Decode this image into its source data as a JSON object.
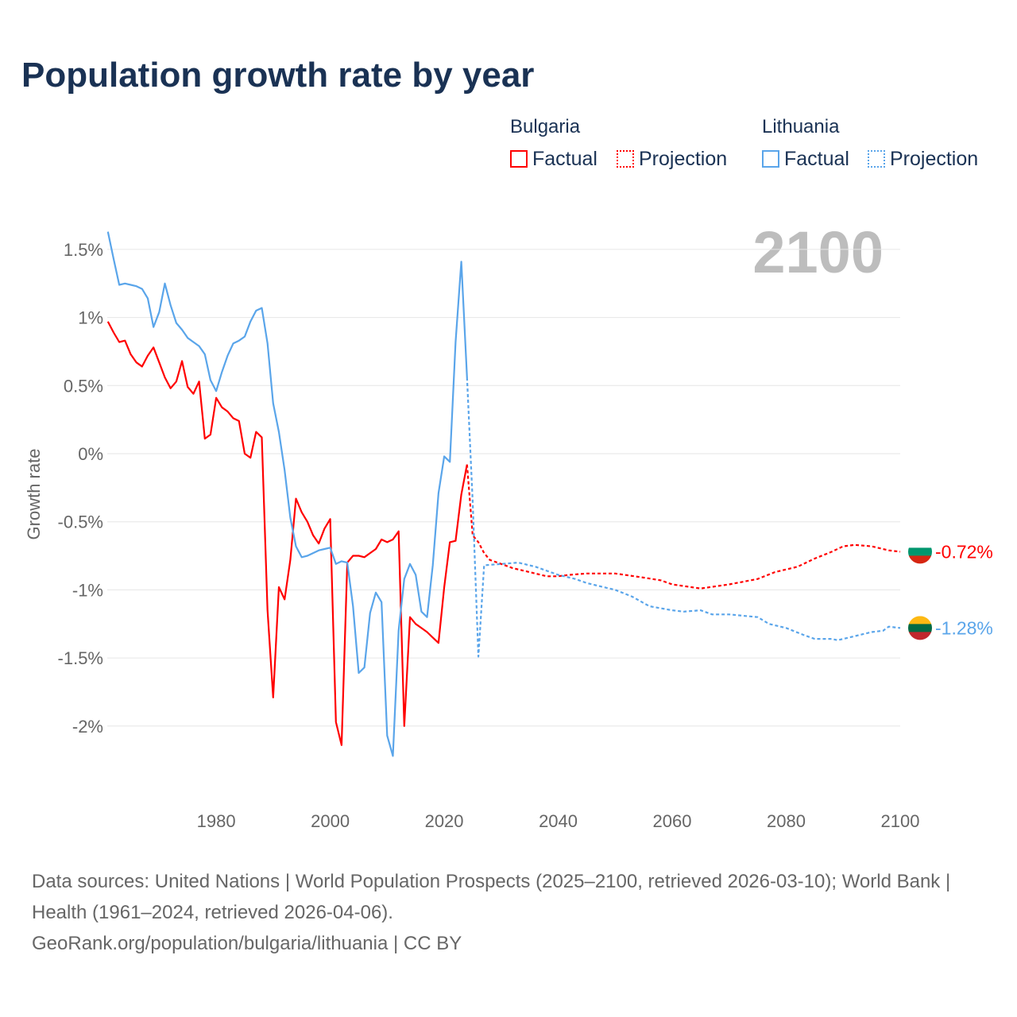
{
  "title": "Population growth rate by year",
  "legend": {
    "groups": [
      {
        "name": "Bulgaria",
        "factual": "Factual",
        "projection": "Projection",
        "color": "#ff0000"
      },
      {
        "name": "Lithuania",
        "factual": "Factual",
        "projection": "Projection",
        "color": "#5aa5ea"
      }
    ]
  },
  "year_label": "2100",
  "sources": {
    "line1": "Data sources: United Nations | World Population Prospects (2025–2100, retrieved 2026-03-10); World Bank | Health (1961–2024, retrieved 2026-04-06).",
    "line2": "GeoRank.org/population/bulgaria/lithuania | CC BY"
  },
  "chart_data": {
    "type": "line",
    "title": "Population growth rate by year",
    "xlabel": "",
    "ylabel": "Growth rate",
    "xlim": [
      1961,
      2100
    ],
    "ylim": [
      -2.3,
      1.65
    ],
    "xticks": [
      1980,
      2000,
      2020,
      2040,
      2060,
      2080,
      2100
    ],
    "yticks": [
      1.5,
      1,
      0.5,
      0,
      -0.5,
      -1,
      -1.5,
      -2
    ],
    "ytick_labels": [
      "1.5%",
      "1%",
      "0.5%",
      "0%",
      "-0.5%",
      "-1%",
      "-1.5%",
      "-2%"
    ],
    "grid": true,
    "legend_position": "top-right",
    "series": [
      {
        "name": "Bulgaria Factual",
        "color": "#ff0000",
        "dash": false,
        "x": [
          1961,
          1962,
          1963,
          1964,
          1965,
          1966,
          1967,
          1968,
          1969,
          1970,
          1971,
          1972,
          1973,
          1974,
          1975,
          1976,
          1977,
          1978,
          1979,
          1980,
          1981,
          1982,
          1983,
          1984,
          1985,
          1986,
          1987,
          1988,
          1989,
          1990,
          1991,
          1992,
          1993,
          1994,
          1995,
          1996,
          1997,
          1998,
          1999,
          2000,
          2001,
          2002,
          2003,
          2004,
          2005,
          2006,
          2007,
          2008,
          2009,
          2010,
          2011,
          2012,
          2013,
          2014,
          2015,
          2016,
          2017,
          2018,
          2019,
          2020,
          2021,
          2022,
          2023,
          2024
        ],
        "y": [
          0.97,
          0.89,
          0.82,
          0.83,
          0.73,
          0.67,
          0.64,
          0.72,
          0.78,
          0.67,
          0.56,
          0.48,
          0.53,
          0.68,
          0.49,
          0.44,
          0.53,
          0.11,
          0.14,
          0.41,
          0.34,
          0.31,
          0.26,
          0.24,
          0.0,
          -0.03,
          0.16,
          0.12,
          -1.15,
          -1.79,
          -0.98,
          -1.07,
          -0.78,
          -0.33,
          -0.43,
          -0.5,
          -0.6,
          -0.66,
          -0.55,
          -0.48,
          -1.97,
          -2.14,
          -0.8,
          -0.75,
          -0.75,
          -0.76,
          -0.73,
          -0.7,
          -0.63,
          -0.65,
          -0.63,
          -0.57,
          -2.0,
          -1.2,
          -1.25,
          -1.28,
          -1.31,
          -1.35,
          -1.39,
          -0.98,
          -0.65,
          -0.64,
          -0.3,
          -0.08
        ]
      },
      {
        "name": "Bulgaria Projection",
        "color": "#ff0000",
        "dash": true,
        "x": [
          2024,
          2025,
          2026,
          2027,
          2028,
          2030,
          2032,
          2035,
          2038,
          2040,
          2042,
          2045,
          2050,
          2055,
          2058,
          2060,
          2065,
          2070,
          2075,
          2078,
          2082,
          2085,
          2088,
          2090,
          2092,
          2095,
          2098,
          2100
        ],
        "y": [
          -0.08,
          -0.6,
          -0.65,
          -0.73,
          -0.78,
          -0.81,
          -0.84,
          -0.87,
          -0.9,
          -0.9,
          -0.89,
          -0.88,
          -0.88,
          -0.91,
          -0.93,
          -0.96,
          -0.99,
          -0.96,
          -0.92,
          -0.87,
          -0.83,
          -0.77,
          -0.72,
          -0.68,
          -0.67,
          -0.68,
          -0.71,
          -0.72
        ]
      },
      {
        "name": "Lithuania Factual",
        "color": "#5aa5ea",
        "dash": false,
        "x": [
          1961,
          1962,
          1963,
          1964,
          1965,
          1966,
          1967,
          1968,
          1969,
          1970,
          1971,
          1972,
          1973,
          1974,
          1975,
          1976,
          1977,
          1978,
          1979,
          1980,
          1981,
          1982,
          1983,
          1984,
          1985,
          1986,
          1987,
          1988,
          1989,
          1990,
          1991,
          1992,
          1993,
          1994,
          1995,
          1996,
          1997,
          1998,
          1999,
          2000,
          2001,
          2002,
          2003,
          2004,
          2005,
          2006,
          2007,
          2008,
          2009,
          2010,
          2011,
          2012,
          2013,
          2014,
          2015,
          2016,
          2017,
          2018,
          2019,
          2020,
          2021,
          2022,
          2023,
          2024
        ],
        "y": [
          1.63,
          1.43,
          1.24,
          1.25,
          1.24,
          1.23,
          1.21,
          1.14,
          0.93,
          1.04,
          1.25,
          1.09,
          0.96,
          0.91,
          0.85,
          0.82,
          0.79,
          0.73,
          0.54,
          0.46,
          0.6,
          0.72,
          0.81,
          0.83,
          0.86,
          0.97,
          1.05,
          1.07,
          0.81,
          0.37,
          0.16,
          -0.12,
          -0.47,
          -0.68,
          -0.76,
          -0.75,
          -0.73,
          -0.71,
          -0.7,
          -0.69,
          -0.81,
          -0.79,
          -0.8,
          -1.12,
          -1.61,
          -1.57,
          -1.17,
          -1.02,
          -1.09,
          -2.07,
          -2.22,
          -1.3,
          -0.92,
          -0.81,
          -0.89,
          -1.16,
          -1.2,
          -0.82,
          -0.29,
          -0.02,
          -0.06,
          0.82,
          1.41,
          0.56
        ]
      },
      {
        "name": "Lithuania Projection",
        "color": "#5aa5ea",
        "dash": true,
        "x": [
          2024,
          2025,
          2026,
          2027,
          2030,
          2033,
          2036,
          2040,
          2043,
          2045,
          2048,
          2050,
          2053,
          2056,
          2060,
          2062,
          2065,
          2067,
          2070,
          2075,
          2077,
          2080,
          2083,
          2085,
          2088,
          2089,
          2092,
          2095,
          2097,
          2098,
          2100
        ],
        "y": [
          0.56,
          -0.35,
          -1.49,
          -0.82,
          -0.81,
          -0.8,
          -0.83,
          -0.89,
          -0.92,
          -0.95,
          -0.98,
          -1.0,
          -1.05,
          -1.12,
          -1.15,
          -1.16,
          -1.15,
          -1.18,
          -1.18,
          -1.2,
          -1.25,
          -1.28,
          -1.33,
          -1.36,
          -1.36,
          -1.37,
          -1.34,
          -1.31,
          -1.3,
          -1.27,
          -1.28
        ]
      }
    ],
    "end_labels": [
      {
        "country": "Bulgaria",
        "value": -0.72,
        "text": "-0.72%",
        "color": "#ff0000",
        "flag": [
          "#ffffff",
          "#00966e",
          "#d62612"
        ]
      },
      {
        "country": "Lithuania",
        "value": -1.28,
        "text": "-1.28%",
        "color": "#5aa5ea",
        "flag": [
          "#fdb913",
          "#006a44",
          "#c1272d"
        ]
      }
    ]
  }
}
